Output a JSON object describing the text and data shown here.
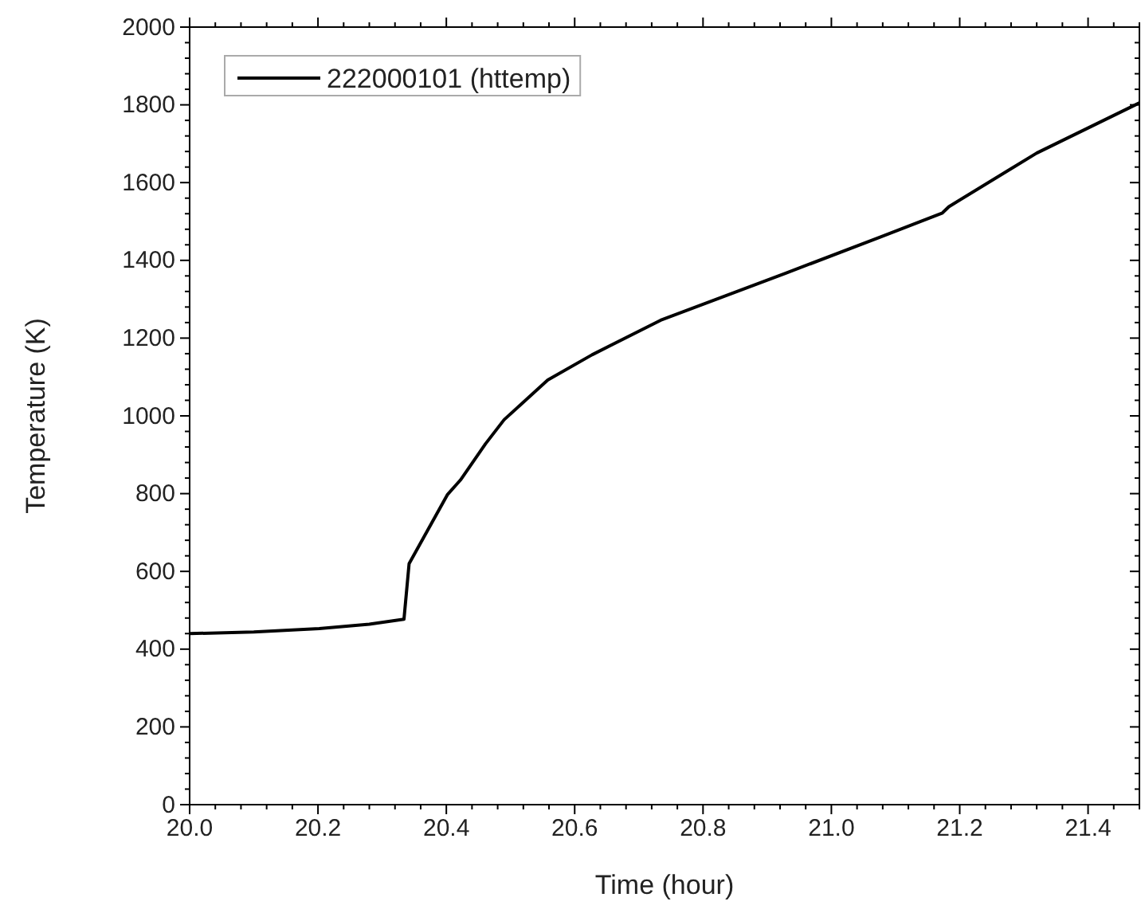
{
  "chart_data": {
    "type": "line",
    "xlabel": "Time (hour)",
    "ylabel": "Temperature (K)",
    "x": [
      20.0,
      20.1,
      20.202,
      20.28,
      20.334,
      20.342,
      20.402,
      20.422,
      20.461,
      20.49,
      20.558,
      20.627,
      20.734,
      20.929,
      21.076,
      21.173,
      21.183,
      21.32,
      21.48
    ],
    "series": [
      {
        "name": "222000101 (httemp)",
        "color": "#000000",
        "values": [
          440,
          444,
          453,
          464,
          477,
          620,
          798,
          835,
          928,
          990,
          1092,
          1157,
          1246,
          1367,
          1460,
          1522,
          1538,
          1676,
          1805
        ]
      }
    ],
    "xlim": [
      20,
      21.48
    ],
    "xticks": [
      {
        "value": 20,
        "label": "20.0"
      },
      {
        "value": 20.2,
        "label": "20.2"
      },
      {
        "value": 20.4,
        "label": "20.4"
      },
      {
        "value": 20.6,
        "label": "20.6"
      },
      {
        "value": 20.8,
        "label": "20.8"
      },
      {
        "value": 21,
        "label": "21.0"
      },
      {
        "value": 21.2,
        "label": "21.2"
      },
      {
        "value": 21.4,
        "label": "21.4"
      }
    ],
    "ylim": [
      0,
      2000
    ],
    "yticks": [
      0,
      200,
      400,
      600,
      800,
      1000,
      1200,
      1400,
      1600,
      1800,
      2000
    ],
    "legend": "top left",
    "grid": false,
    "marker": "none",
    "line_style": "solid"
  }
}
